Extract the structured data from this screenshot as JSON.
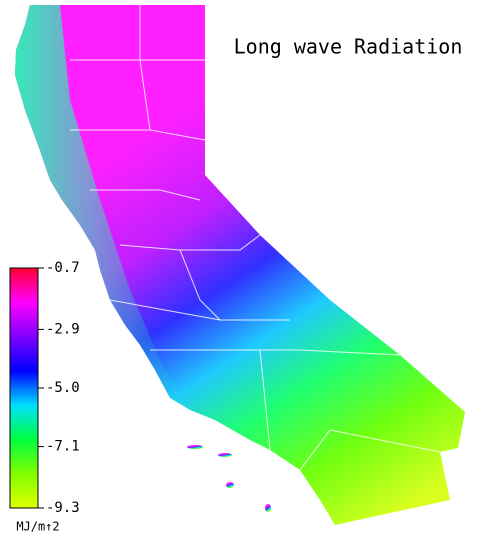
{
  "title": "Long wave Radiation",
  "colorbar": {
    "range": [
      -9.3,
      -0.7
    ],
    "ticks": [
      -0.7,
      -2.9,
      {
        "value": -5,
        "label": "-5.0"
      },
      -7.1,
      -9.3
    ],
    "unit": "MJ/m↑2",
    "colors": [
      "#ff0030",
      "#ff00ff",
      "#8000ff",
      "#0000ff",
      "#00e0ff",
      "#00ff40",
      "#80ff00",
      "#e0ff00"
    ]
  }
}
